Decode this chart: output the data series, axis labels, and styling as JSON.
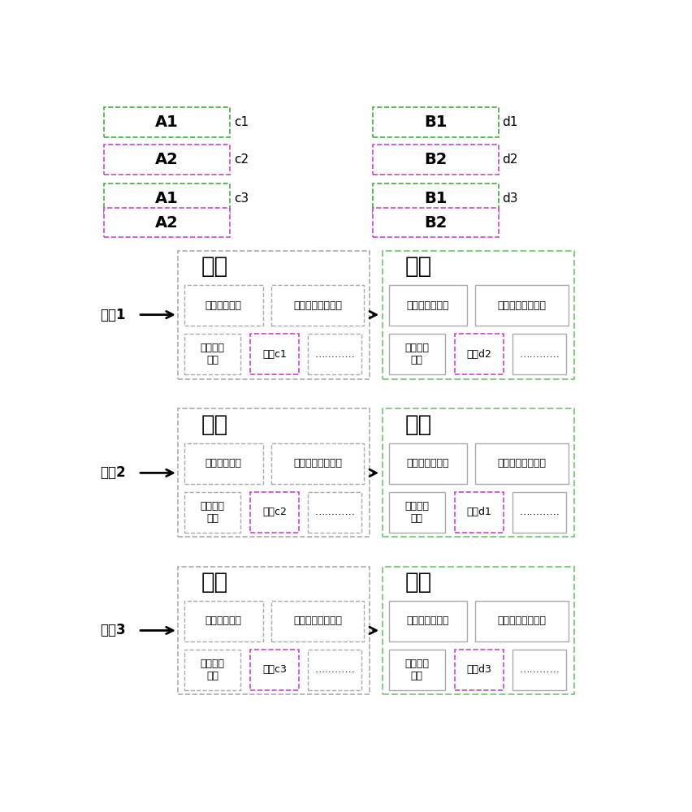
{
  "bg_color": "#ffffff",
  "nodes": [
    {
      "label": "节点1",
      "block1_data_label": "数据c1",
      "block2_data_label": "数据d2",
      "block1_hash": "前一区块哈希",
      "block2_hash": "前一区块哈希値"
    },
    {
      "label": "节点2",
      "block1_data_label": "数据c2",
      "block2_data_label": "数据d1",
      "block1_hash": "前一区块哈希",
      "block2_hash": "前一区块哈希値"
    },
    {
      "label": "节点3",
      "block1_data_label": "数据c3",
      "block2_data_label": "数据d3",
      "block1_hash": "前一区块哈希",
      "block2_hash": "前一区块哈希値"
    }
  ],
  "text_time": "时间戳及其它信息",
  "text_other": "其他交易\n数据",
  "text_dots": "…………",
  "block_title": "区块",
  "A1": "A1",
  "A2": "A2",
  "B1": "B1",
  "B2": "B2",
  "c1": "c1",
  "c2": "c2",
  "c3": "c3",
  "d1": "d1",
  "d2": "d2",
  "d3": "d3",
  "pink_border": "#cc44cc",
  "green_border": "#44aa44",
  "gray_border": "#aaaaaa",
  "light_green_outer": "#88cc88"
}
